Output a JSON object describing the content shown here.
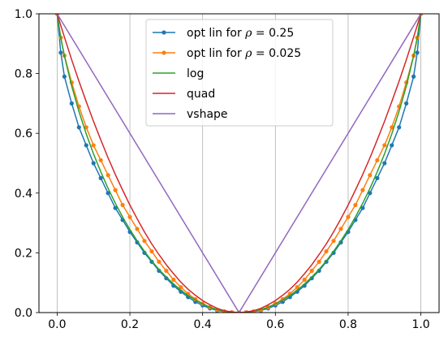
{
  "chart_data": {
    "type": "line",
    "title": "",
    "xlabel": "",
    "ylabel": "",
    "xlim": [
      -0.05,
      1.05
    ],
    "ylim": [
      0.0,
      1.0
    ],
    "x_ticks": [
      "0.0",
      "0.2",
      "0.4",
      "0.6",
      "0.8",
      "1.0"
    ],
    "y_ticks": [
      "0.0",
      "0.2",
      "0.4",
      "0.6",
      "0.8",
      "1.0"
    ],
    "vertical_grid_x": [
      0.0,
      0.2,
      0.4,
      0.6,
      0.8,
      1.0
    ],
    "grid": "vertical lines only",
    "legend_position": "top-center",
    "series": [
      {
        "name": "opt lin for ρ = 0.25",
        "legend_prefix": "opt lin for ",
        "legend_symbol": "ρ",
        "legend_suffix": " = 0.25",
        "color": "#1f77b4",
        "marker": "dot",
        "x": [
          0.0,
          0.01,
          0.02,
          0.04,
          0.06,
          0.08,
          0.1,
          0.12,
          0.14,
          0.16,
          0.18,
          0.2,
          0.22,
          0.24,
          0.26,
          0.28,
          0.3,
          0.32,
          0.34,
          0.36,
          0.38,
          0.4,
          0.42,
          0.44,
          0.46,
          0.48,
          0.5,
          0.52,
          0.54,
          0.56,
          0.58,
          0.6,
          0.62,
          0.64,
          0.66,
          0.68,
          0.7,
          0.72,
          0.74,
          0.76,
          0.78,
          0.8,
          0.82,
          0.84,
          0.86,
          0.88,
          0.9,
          0.92,
          0.94,
          0.96,
          0.98,
          0.99,
          1.0
        ],
        "y": [
          1.0,
          0.87,
          0.79,
          0.7,
          0.62,
          0.56,
          0.5,
          0.45,
          0.4,
          0.35,
          0.31,
          0.27,
          0.235,
          0.2,
          0.17,
          0.14,
          0.115,
          0.09,
          0.07,
          0.052,
          0.036,
          0.024,
          0.014,
          0.007,
          0.003,
          0.001,
          0.0,
          0.001,
          0.003,
          0.007,
          0.014,
          0.024,
          0.036,
          0.052,
          0.07,
          0.09,
          0.115,
          0.14,
          0.17,
          0.2,
          0.235,
          0.27,
          0.31,
          0.35,
          0.4,
          0.45,
          0.5,
          0.56,
          0.62,
          0.7,
          0.79,
          0.87,
          1.0
        ]
      },
      {
        "name": "opt lin for ρ = 0.025",
        "legend_prefix": "opt lin for ",
        "legend_symbol": "ρ",
        "legend_suffix": " = 0.025",
        "color": "#ff7f0e",
        "marker": "dot",
        "x": [
          0.0,
          0.01,
          0.02,
          0.04,
          0.06,
          0.08,
          0.1,
          0.12,
          0.14,
          0.16,
          0.18,
          0.2,
          0.22,
          0.24,
          0.26,
          0.28,
          0.3,
          0.32,
          0.34,
          0.36,
          0.38,
          0.4,
          0.42,
          0.44,
          0.46,
          0.48,
          0.5,
          0.52,
          0.54,
          0.56,
          0.58,
          0.6,
          0.62,
          0.64,
          0.66,
          0.68,
          0.7,
          0.72,
          0.74,
          0.76,
          0.78,
          0.8,
          0.82,
          0.84,
          0.86,
          0.88,
          0.9,
          0.92,
          0.94,
          0.96,
          0.98,
          0.99,
          1.0
        ],
        "y": [
          1.0,
          0.92,
          0.86,
          0.77,
          0.69,
          0.62,
          0.56,
          0.51,
          0.46,
          0.41,
          0.36,
          0.32,
          0.28,
          0.24,
          0.205,
          0.17,
          0.14,
          0.11,
          0.085,
          0.063,
          0.045,
          0.03,
          0.018,
          0.009,
          0.004,
          0.001,
          0.0,
          0.001,
          0.004,
          0.009,
          0.018,
          0.03,
          0.045,
          0.063,
          0.085,
          0.11,
          0.14,
          0.17,
          0.205,
          0.24,
          0.28,
          0.32,
          0.36,
          0.41,
          0.46,
          0.51,
          0.56,
          0.62,
          0.69,
          0.77,
          0.86,
          0.92,
          1.0
        ]
      },
      {
        "name": "log",
        "color": "#2ca02c",
        "marker": "none",
        "x": [
          0.0,
          0.01,
          0.02,
          0.04,
          0.06,
          0.08,
          0.1,
          0.12,
          0.14,
          0.16,
          0.18,
          0.2,
          0.22,
          0.24,
          0.26,
          0.28,
          0.3,
          0.32,
          0.34,
          0.36,
          0.38,
          0.4,
          0.42,
          0.44,
          0.46,
          0.48,
          0.5,
          0.52,
          0.54,
          0.56,
          0.58,
          0.6,
          0.62,
          0.64,
          0.66,
          0.68,
          0.7,
          0.72,
          0.74,
          0.76,
          0.78,
          0.8,
          0.82,
          0.84,
          0.86,
          0.88,
          0.9,
          0.92,
          0.94,
          0.96,
          0.98,
          0.99,
          1.0
        ],
        "y": [
          1.0,
          0.919,
          0.859,
          0.758,
          0.673,
          0.598,
          0.531,
          0.471,
          0.416,
          0.366,
          0.32,
          0.278,
          0.24,
          0.205,
          0.173,
          0.144,
          0.119,
          0.096,
          0.075,
          0.057,
          0.042,
          0.029,
          0.018,
          0.01,
          0.005,
          0.001,
          0.0,
          0.001,
          0.005,
          0.01,
          0.018,
          0.029,
          0.042,
          0.057,
          0.075,
          0.096,
          0.119,
          0.144,
          0.173,
          0.205,
          0.24,
          0.278,
          0.32,
          0.366,
          0.416,
          0.471,
          0.531,
          0.598,
          0.673,
          0.758,
          0.859,
          0.919,
          1.0
        ]
      },
      {
        "name": "quad",
        "color": "#d62728",
        "marker": "none",
        "x": [
          0.0,
          0.02,
          0.04,
          0.06,
          0.08,
          0.1,
          0.12,
          0.14,
          0.16,
          0.18,
          0.2,
          0.22,
          0.24,
          0.26,
          0.28,
          0.3,
          0.32,
          0.34,
          0.36,
          0.38,
          0.4,
          0.42,
          0.44,
          0.46,
          0.48,
          0.5,
          0.52,
          0.54,
          0.56,
          0.58,
          0.6,
          0.62,
          0.64,
          0.66,
          0.68,
          0.7,
          0.72,
          0.74,
          0.76,
          0.78,
          0.8,
          0.82,
          0.84,
          0.86,
          0.88,
          0.9,
          0.92,
          0.94,
          0.96,
          0.98,
          1.0
        ],
        "y": [
          1.0,
          0.922,
          0.846,
          0.774,
          0.706,
          0.64,
          0.578,
          0.518,
          0.462,
          0.41,
          0.36,
          0.314,
          0.27,
          0.23,
          0.194,
          0.16,
          0.13,
          0.102,
          0.078,
          0.058,
          0.04,
          0.026,
          0.014,
          0.006,
          0.002,
          0.0,
          0.002,
          0.006,
          0.014,
          0.026,
          0.04,
          0.058,
          0.078,
          0.102,
          0.13,
          0.16,
          0.194,
          0.23,
          0.27,
          0.314,
          0.36,
          0.41,
          0.462,
          0.518,
          0.578,
          0.64,
          0.706,
          0.774,
          0.846,
          0.922,
          1.0
        ]
      },
      {
        "name": "vshape",
        "color": "#9467bd",
        "marker": "none",
        "x": [
          0.0,
          0.5,
          1.0
        ],
        "y": [
          1.0,
          0.0,
          1.0
        ]
      }
    ]
  }
}
